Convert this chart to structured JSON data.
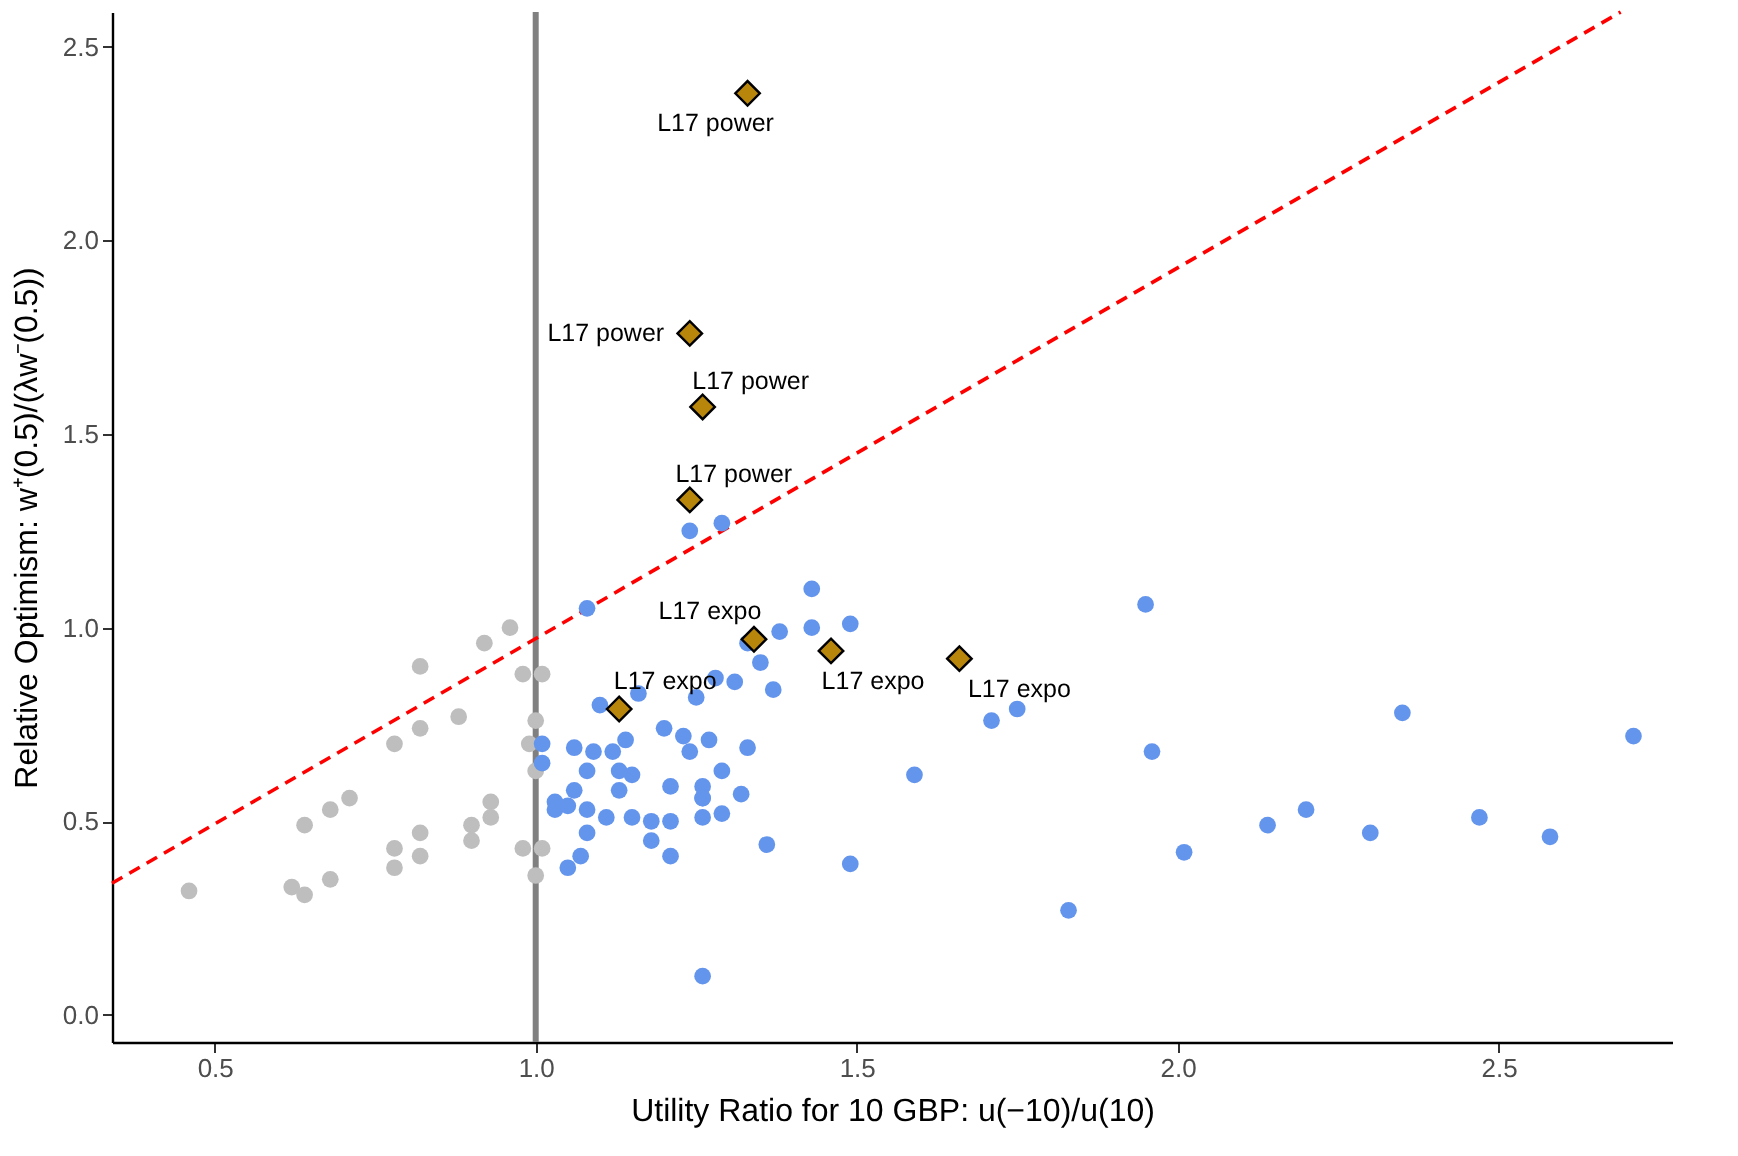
{
  "chart_data": {
    "type": "scatter",
    "xlabel": "Utility Ratio for 10 GBP: u(−10)/u(10)",
    "ylabel": "Relative Optimism:  w⁺(0.5)/(λw⁻(0.5))",
    "xlim": [
      0.34,
      2.77
    ],
    "ylim": [
      -0.07,
      2.59
    ],
    "xticks": [
      0.5,
      {
        "value": 1,
        "label": "1.0"
      },
      1.5,
      {
        "value": 2,
        "label": "2.0"
      },
      2.5
    ],
    "yticks": [
      {
        "value": 0,
        "label": "0.0"
      },
      0.5,
      {
        "value": 1,
        "label": "1.0"
      },
      1.5,
      {
        "value": 2,
        "label": "2.0"
      },
      2.5
    ],
    "grid": false,
    "marker": "circle",
    "series": [
      {
        "color": "#bebebe",
        "x": [
          0.46,
          0.62,
          0.64,
          0.64,
          0.68,
          0.71,
          0.68,
          0.78,
          0.78,
          0.78,
          0.82,
          0.82,
          0.82,
          0.82,
          0.88,
          0.9,
          0.9,
          0.92,
          0.93,
          0.93,
          0.96,
          0.98,
          0.98,
          1.01,
          1.0,
          0.99,
          1.0,
          1.01,
          1.0
        ],
        "values": [
          0.32,
          0.33,
          0.31,
          0.49,
          0.53,
          0.56,
          0.35,
          0.43,
          0.38,
          0.7,
          0.74,
          0.9,
          0.47,
          0.41,
          0.77,
          0.49,
          0.45,
          0.96,
          0.51,
          0.55,
          1.0,
          0.88,
          0.43,
          0.88,
          0.76,
          0.7,
          0.63,
          0.43,
          0.36
        ]
      },
      {
        "color": "#6495ed",
        "x": [
          1.08,
          1.24,
          1.29,
          1.43,
          1.43,
          1.49,
          1.38,
          1.33,
          1.35,
          1.37,
          1.31,
          1.28,
          1.25,
          1.16,
          1.1,
          1.2,
          1.23,
          1.24,
          1.27,
          1.33,
          1.14,
          1.12,
          1.09,
          1.06,
          1.01,
          1.08,
          1.13,
          1.15,
          1.06,
          1.13,
          1.21,
          1.26,
          1.26,
          1.29,
          1.32,
          1.26,
          1.03,
          1.05,
          1.03,
          1.08,
          1.11,
          1.15,
          1.18,
          1.21,
          1.26,
          1.29,
          1.08,
          1.18,
          1.21,
          1.36,
          1.07,
          1.05,
          1.26,
          1.49,
          1.01,
          1.95,
          1.71,
          1.75,
          1.59,
          1.96,
          2.35,
          2.71,
          1.83,
          2.01,
          2.14,
          2.2,
          2.3,
          2.47,
          2.58
        ],
        "values": [
          1.05,
          1.25,
          1.27,
          1.1,
          1.0,
          1.01,
          0.99,
          0.96,
          0.91,
          0.84,
          0.86,
          0.87,
          0.82,
          0.83,
          0.8,
          0.74,
          0.72,
          0.68,
          0.71,
          0.69,
          0.71,
          0.68,
          0.68,
          0.69,
          0.7,
          0.63,
          0.63,
          0.62,
          0.58,
          0.58,
          0.59,
          0.59,
          0.56,
          0.63,
          0.57,
          0.56,
          0.55,
          0.54,
          0.53,
          0.53,
          0.51,
          0.51,
          0.5,
          0.5,
          0.51,
          0.52,
          0.47,
          0.45,
          0.41,
          0.44,
          0.41,
          0.38,
          0.1,
          0.39,
          0.65,
          1.06,
          0.76,
          0.79,
          0.62,
          0.68,
          0.78,
          0.72,
          0.27,
          0.42,
          0.49,
          0.53,
          0.47,
          0.51,
          0.46
        ]
      },
      {
        "color": "#b8860b",
        "marker": "diamond",
        "x": [
          1.33,
          1.24,
          1.26,
          1.24,
          1.34,
          1.13,
          1.46,
          1.66
        ],
        "values": [
          2.38,
          1.76,
          1.57,
          1.33,
          0.97,
          0.79,
          0.94,
          0.92
        ]
      },
      {
        "type": "line",
        "color": "#ff0000",
        "line_style": "dashed",
        "marker": "none",
        "x": [
          0.34,
          2.69
        ],
        "values": [
          0.34,
          2.59
        ]
      }
    ],
    "ref_lines": [
      {
        "axis": "x",
        "value": 1,
        "color": "#808080"
      }
    ],
    "annotations": [
      {
        "text": "L17 power",
        "x": 1.33,
        "y": 2.38
      },
      {
        "text": "L17 power",
        "x": 1.24,
        "y": 1.76
      },
      {
        "text": "L17 power",
        "x": 1.26,
        "y": 1.57
      },
      {
        "text": "L17 power",
        "x": 1.24,
        "y": 1.33
      },
      {
        "text": "L17 expo",
        "x": 1.34,
        "y": 0.97
      },
      {
        "text": "L17 expo",
        "x": 1.13,
        "y": 0.79
      },
      {
        "text": "L17 expo",
        "x": 1.46,
        "y": 0.94
      },
      {
        "text": "L17 expo",
        "x": 1.66,
        "y": 0.92
      }
    ]
  }
}
